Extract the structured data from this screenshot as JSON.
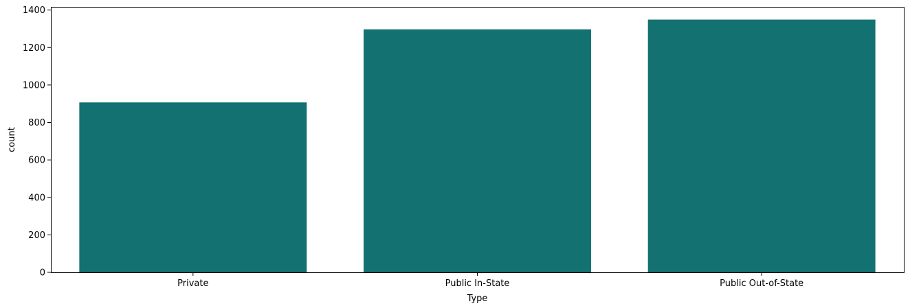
{
  "chart_data": {
    "type": "bar",
    "categories": [
      "Private",
      "Public In-State",
      "Public Out-of-State"
    ],
    "values": [
      907,
      1297,
      1349
    ],
    "title": "",
    "xlabel": "Type",
    "ylabel": "count",
    "ylim": [
      0,
      1417
    ],
    "yticks": [
      0,
      200,
      400,
      600,
      800,
      1000,
      1200,
      1400
    ],
    "grid": false,
    "legend": "none",
    "bar_color": "#137171"
  }
}
